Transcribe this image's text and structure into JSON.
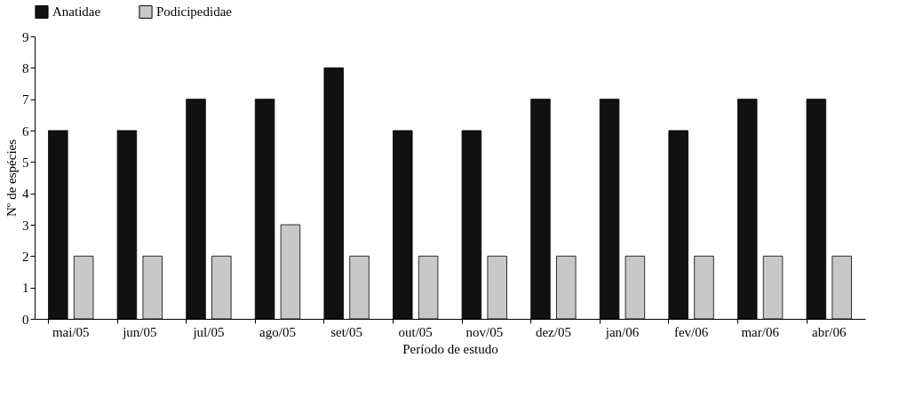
{
  "chart_data": {
    "type": "bar",
    "xlabel": "Período de estudo",
    "ylabel": "Nº de espécies",
    "categories": [
      "mai/05",
      "jun/05",
      "jul/05",
      "ago/05",
      "set/05",
      "out/05",
      "nov/05",
      "dez/05",
      "jan/06",
      "fev/06",
      "mar/06",
      "abr/06"
    ],
    "series": [
      {
        "name": "Anatidae",
        "color": "#111111",
        "values": [
          6,
          6,
          7,
          7,
          8,
          6,
          6,
          7,
          7,
          6,
          7,
          7
        ]
      },
      {
        "name": "Podicipedidae",
        "color": "#c8c8c8",
        "values": [
          2,
          2,
          2,
          3,
          2,
          2,
          2,
          2,
          2,
          2,
          2,
          2
        ]
      }
    ],
    "ylim": [
      0,
      9
    ],
    "yticks": [
      0,
      1,
      2,
      3,
      4,
      5,
      6,
      7,
      8,
      9
    ],
    "grid": false,
    "legend": "top"
  }
}
